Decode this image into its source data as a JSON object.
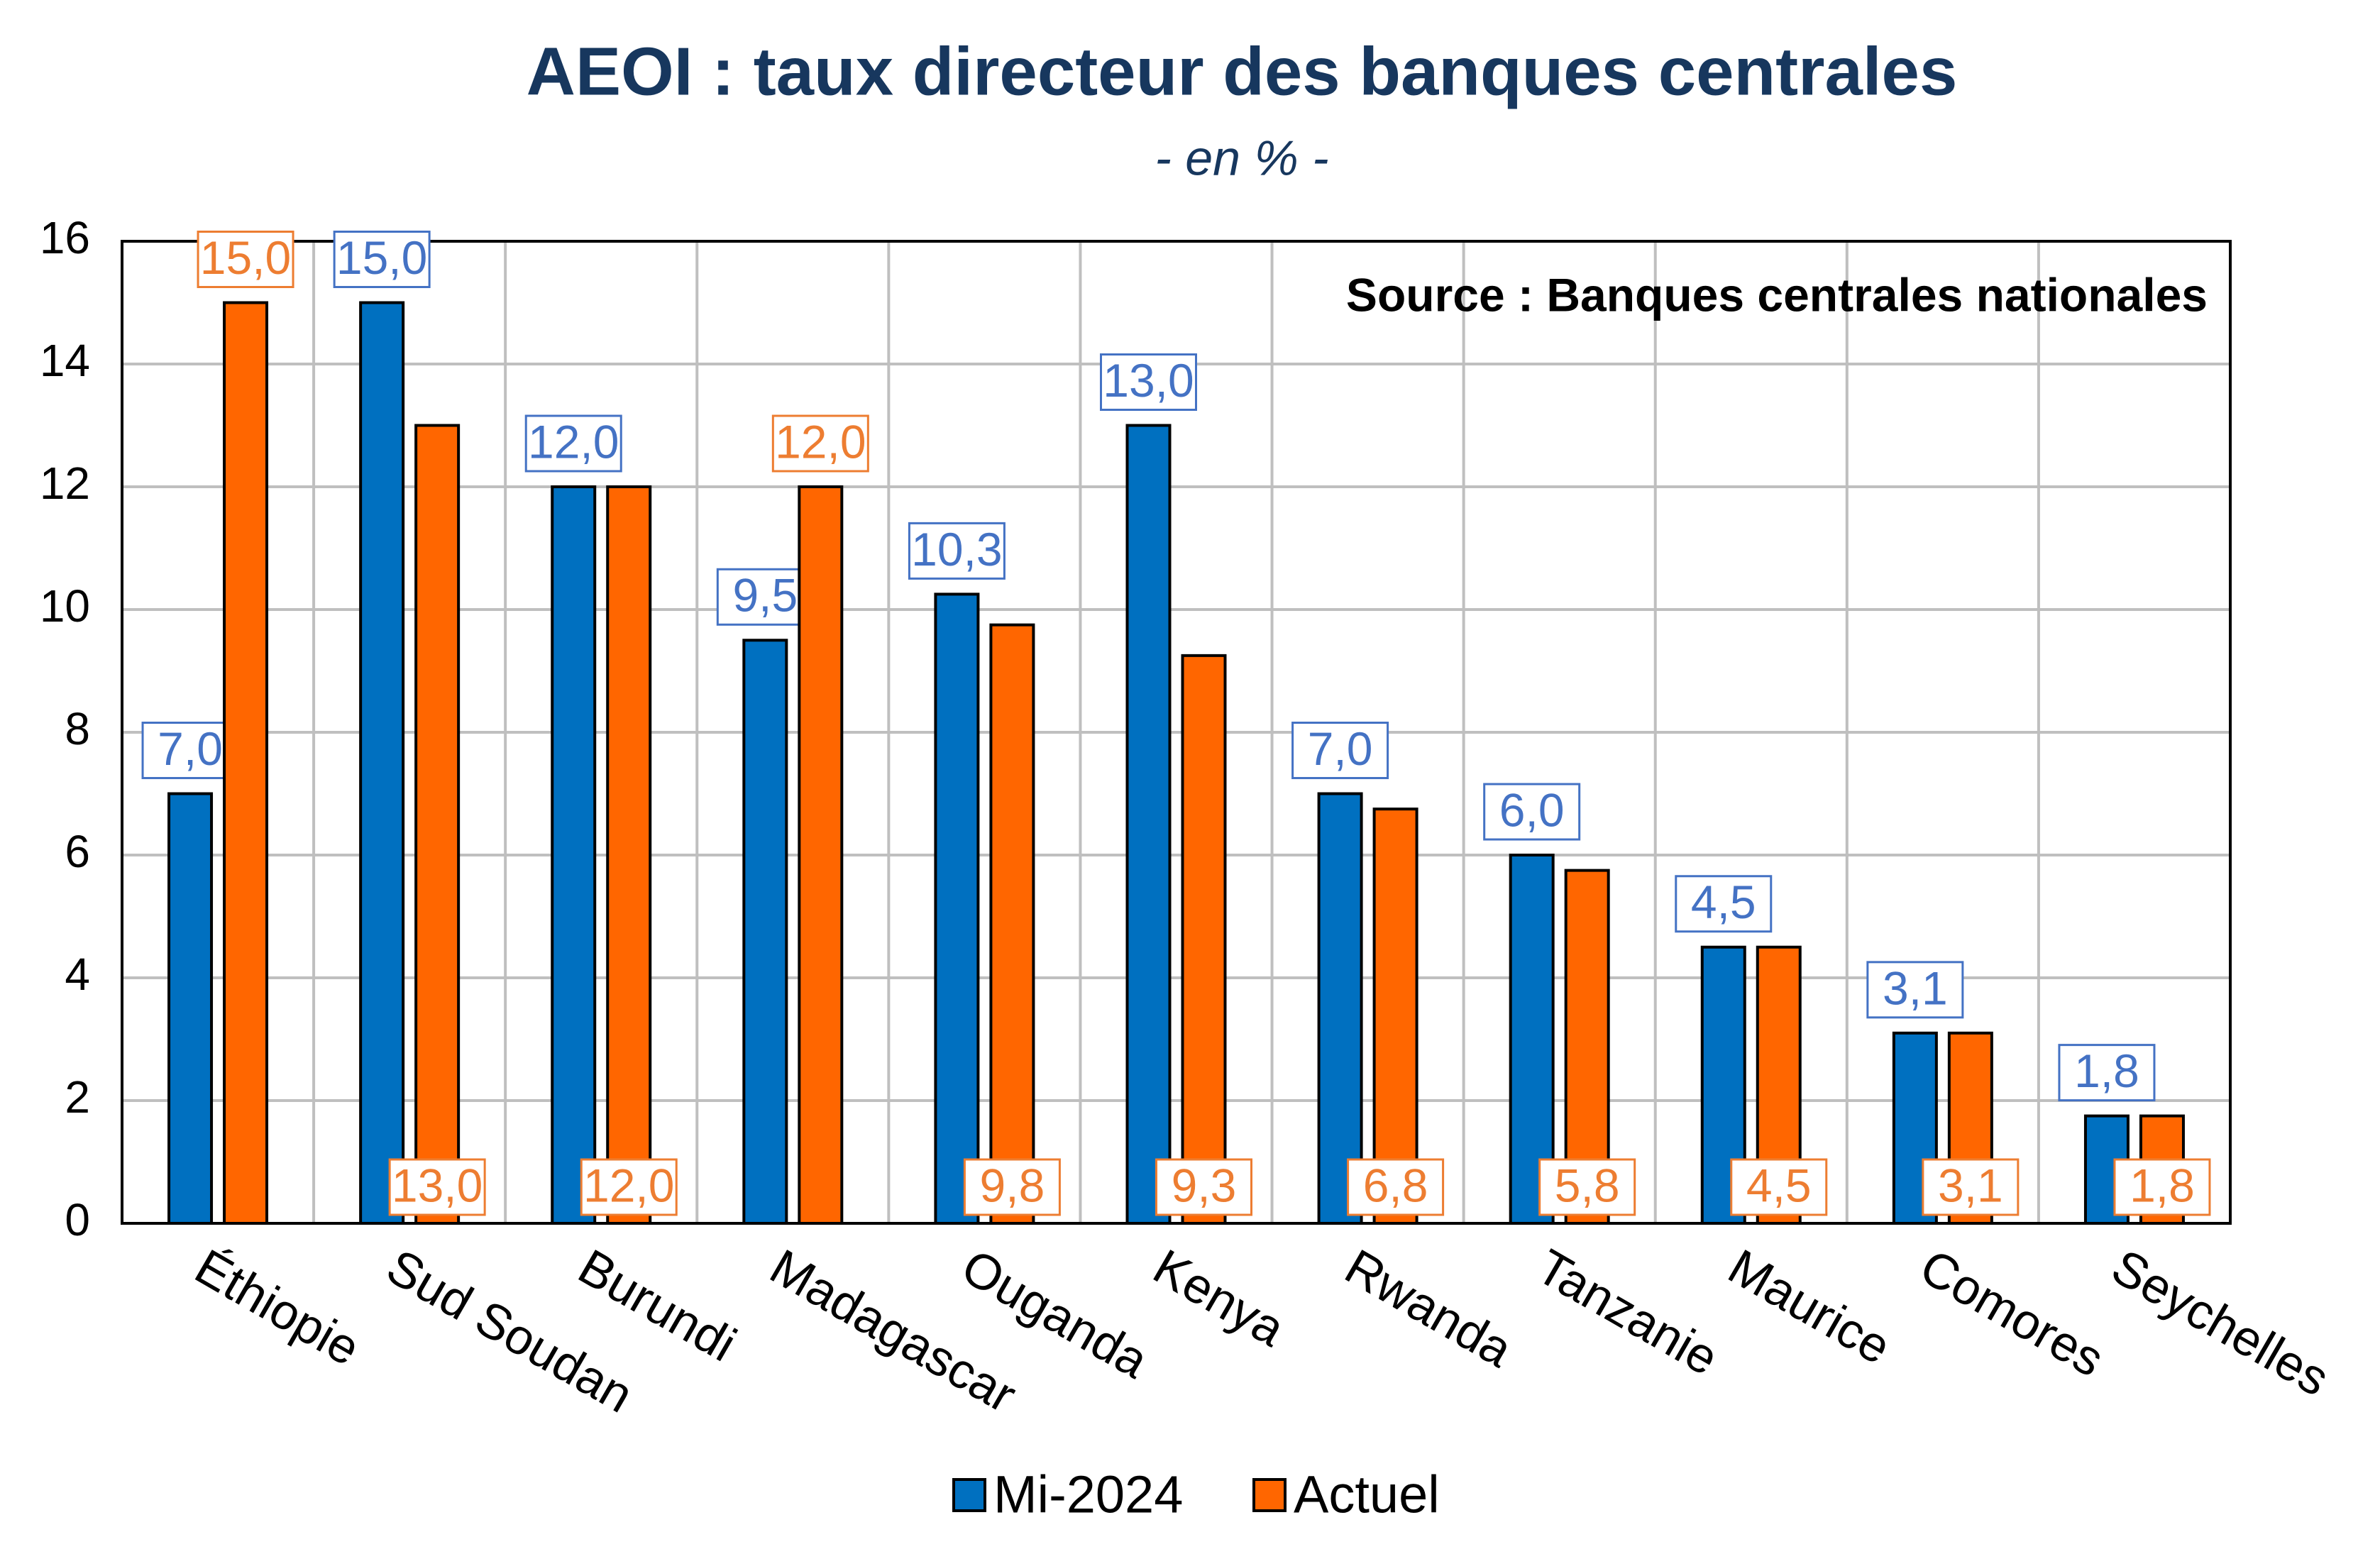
{
  "chart_data": {
    "type": "bar",
    "title": "AEOI : taux directeur des banques centrales",
    "subtitle": "- en % -",
    "annotation": "Source : Banques centrales nationales",
    "categories": [
      "Éthiopie",
      "Sud Soudan",
      "Burundi",
      "Madagascar",
      "Ouganda",
      "Kenya",
      "Rwanda",
      "Tanzanie",
      "Maurice",
      "Comores",
      "Seychelles"
    ],
    "series": [
      {
        "name": "Mi-2024",
        "color": "#0070c0",
        "label_color": "#4472c4",
        "values": [
          7.0,
          15.0,
          12.0,
          9.5,
          10.25,
          13.0,
          7.0,
          6.0,
          4.5,
          3.1,
          1.75
        ],
        "value_labels": [
          "7,0",
          "15,0",
          "12,0",
          "9,5",
          "10,3",
          "13,0",
          "7,0",
          "6,0",
          "4,5",
          "3,1",
          "1,8"
        ]
      },
      {
        "name": "Actuel",
        "color": "#ff6600",
        "label_color": "#ed7d31",
        "values": [
          15.0,
          13.0,
          12.0,
          12.0,
          9.75,
          9.25,
          6.75,
          5.75,
          4.5,
          3.1,
          1.75
        ],
        "value_labels": [
          "15,0",
          "13,0",
          "12,0",
          "12,0",
          "9,8",
          "9,3",
          "6,8",
          "5,8",
          "4,5",
          "3,1",
          "1,8"
        ]
      }
    ],
    "ylim": [
      0,
      16
    ],
    "yticks": [
      0,
      2,
      4,
      6,
      8,
      10,
      12,
      14,
      16
    ],
    "grid": true
  }
}
